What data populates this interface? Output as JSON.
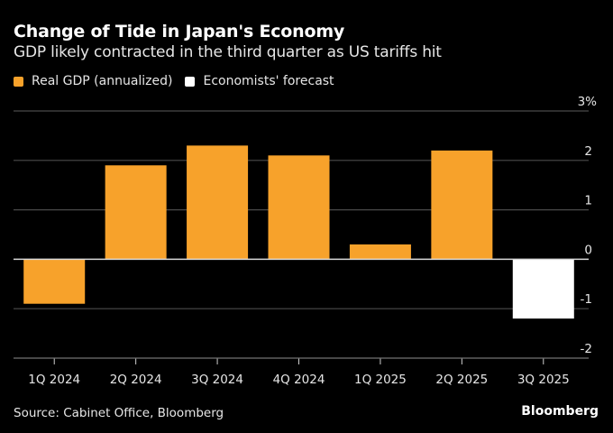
{
  "header": {
    "title": "Change of Tide in Japan's Economy",
    "subtitle": "GDP likely contracted in the third quarter as US tariffs hit"
  },
  "legend": [
    {
      "label": "Real GDP (annualized)",
      "color": "#f7a22b"
    },
    {
      "label": "Economists' forecast",
      "color": "#ffffff"
    }
  ],
  "footer": {
    "source": "Source: Cabinet Office, Bloomberg",
    "brand": "Bloomberg"
  },
  "chart_data": {
    "type": "bar",
    "title": "Change of Tide in Japan's Economy",
    "subtitle": "GDP likely contracted in the third quarter as US tariffs hit",
    "xlabel": "",
    "ylabel": "",
    "categories": [
      "1Q 2024",
      "2Q 2024",
      "3Q 2024",
      "4Q 2024",
      "1Q 2025",
      "2Q 2025",
      "3Q 2025"
    ],
    "series": [
      {
        "name": "Real GDP (annualized)",
        "color": "#f7a22b",
        "values": [
          -0.9,
          1.9,
          2.3,
          2.1,
          0.3,
          2.2,
          null
        ]
      },
      {
        "name": "Economists' forecast",
        "color": "#ffffff",
        "values": [
          null,
          null,
          null,
          null,
          null,
          null,
          -1.2
        ]
      }
    ],
    "ylim": [
      -2,
      3
    ],
    "yticks": [
      3,
      2,
      1,
      0,
      -1,
      -2
    ],
    "ytick_labels": [
      "3%",
      "2",
      "1",
      "0",
      "-1",
      "-2"
    ],
    "yaxis_position": "right",
    "grid": true,
    "legend_position": "top-left"
  }
}
